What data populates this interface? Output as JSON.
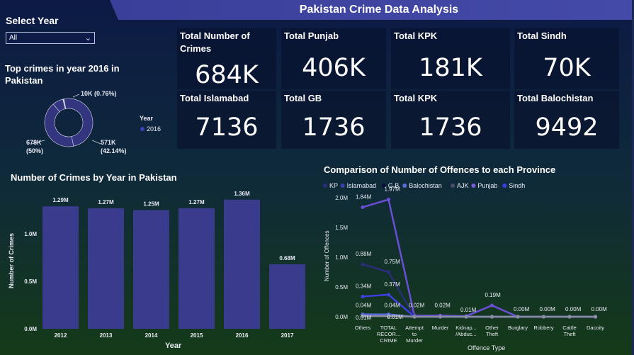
{
  "header": {
    "title": "Pakistan Crime Data Analysis"
  },
  "filter": {
    "label": "Select Year",
    "selected": "All"
  },
  "kpis": [
    {
      "label": "Total Number of Crimes",
      "value": "684K"
    },
    {
      "label": "Total Punjab",
      "value": "406K"
    },
    {
      "label": "Total KPK",
      "value": "181K"
    },
    {
      "label": "Total Sindh",
      "value": "70K"
    },
    {
      "label": "Total Islamabad",
      "value": "7136"
    },
    {
      "label": "Total GB",
      "value": "1736"
    },
    {
      "label": "Total KPK",
      "value": "1736"
    },
    {
      "label": "Total Balochistan",
      "value": "9492"
    }
  ],
  "colors": {
    "bar": "#3a3b8c",
    "donut": "#33357f",
    "punjab": "#6a4fd6",
    "dark_series": "#2a2e7a",
    "sindh": "#3f3fe0"
  },
  "donut": {
    "title": "Top crimes in year 2016 in Pakistan",
    "legend_title": "Year",
    "legend_item": "2016",
    "labels": [
      {
        "text": "10K (0.76%)"
      },
      {
        "text": "678K"
      },
      {
        "text": "(50%)"
      },
      {
        "text": "571K"
      },
      {
        "text": "(42.14%)"
      }
    ],
    "chart_data": {
      "type": "pie",
      "segments": [
        {
          "label": "10K (0.76%)",
          "value": 10,
          "percent": 0.76
        },
        {
          "label": "678K (50%)",
          "value": 678,
          "percent": 50
        },
        {
          "label": "571K (42.14%)",
          "value": 571,
          "percent": 42.14
        }
      ]
    }
  },
  "bar_chart": {
    "title": "Number of Crimes by Year in Pakistan",
    "xlabel": "Year",
    "ylabel": "Number of Crimes",
    "yticks": [
      "0.0M",
      "0.5M",
      "1.0M"
    ],
    "chart_data": {
      "type": "bar",
      "categories": [
        "2012",
        "2013",
        "2014",
        "2015",
        "2016",
        "2017"
      ],
      "values": [
        1.29,
        1.27,
        1.25,
        1.27,
        1.36,
        0.68
      ],
      "data_labels": [
        "1.29M",
        "1.27M",
        "1.25M",
        "1.27M",
        "1.36M",
        "0.68M"
      ],
      "ylim": [
        0,
        1.36
      ]
    }
  },
  "line_chart": {
    "title": "Comparison of Number of Offences to each Province",
    "xlabel": "Offence Type",
    "ylabel": "Number of Offences",
    "yticks": [
      "0.0M",
      "0.5M",
      "1.0M",
      "1.5M",
      "2.0M"
    ],
    "categories": [
      "Others",
      "TOTAL RECOR... CRIME",
      "Attempt to Murder",
      "Murder",
      "Kidnap... /Abduc...",
      "Other Theft",
      "Burglary",
      "Robbery",
      "Cattle Theft",
      "Dacoity"
    ],
    "category_lines": [
      [
        "Others"
      ],
      [
        "TOTAL",
        "RECOR...",
        "CRIME"
      ],
      [
        "Attempt",
        "to",
        "Murder"
      ],
      [
        "Murder"
      ],
      [
        "Kidnap...",
        "/Abduc..."
      ],
      [
        "Other",
        "Theft"
      ],
      [
        "Burglary"
      ],
      [
        "Robbery"
      ],
      [
        "Cattle",
        "Theft"
      ],
      [
        "Dacoity"
      ]
    ],
    "legend": [
      "KP",
      "Islamabad",
      "G.B",
      "Balochistan",
      "AJK",
      "Punjab",
      "Sindh"
    ],
    "legend_colors": [
      "#2b2f7e",
      "#3a3fb0",
      "#0b0e3a",
      "#5a6ad8",
      "#4a4a6a",
      "#7a5ad6",
      "#3d3de8"
    ],
    "point_labels": [
      {
        "text": "1.84M",
        "cat": 0,
        "val": 1.84
      },
      {
        "text": "1.97M",
        "cat": 1,
        "val": 1.97
      },
      {
        "text": "0.88M",
        "cat": 0,
        "val": 0.88
      },
      {
        "text": "0.75M",
        "cat": 1,
        "val": 0.75
      },
      {
        "text": "0.34M",
        "cat": 0,
        "val": 0.34
      },
      {
        "text": "0.37M",
        "cat": 1,
        "val": 0.37
      },
      {
        "text": "0.04M",
        "cat": 0,
        "val": 0.04
      },
      {
        "text": "0.04M",
        "cat": 1,
        "val": 0.04
      },
      {
        "text": "0.01M",
        "cat": 0,
        "val": 0.01
      },
      {
        "text": "0.01M",
        "cat": 1,
        "val": 0.01
      },
      {
        "text": "0.02M",
        "cat": 2,
        "val": 0.02
      },
      {
        "text": "0.02M",
        "cat": 3,
        "val": 0.02
      },
      {
        "text": "0.01M",
        "cat": 4,
        "val": 0.01
      },
      {
        "text": "0.19M",
        "cat": 5,
        "val": 0.19
      },
      {
        "text": "0.00M",
        "cat": 6,
        "val": 0.0
      },
      {
        "text": "0.00M",
        "cat": 7,
        "val": 0.0
      },
      {
        "text": "0.00M",
        "cat": 8,
        "val": 0.0
      },
      {
        "text": "0.00M",
        "cat": 9,
        "val": 0.0
      },
      {
        "text": "0.00M",
        "cat": 2,
        "val": 0.0
      },
      {
        "text": "0.00M",
        "cat": 3,
        "val": 0.0
      },
      {
        "text": "0.00M",
        "cat": 4,
        "val": 0.0
      },
      {
        "text": "0.00M",
        "cat": 5,
        "val": 0.0
      },
      {
        "text": "0.00M",
        "cat": 6,
        "val": 0.0
      },
      {
        "text": "0.00M",
        "cat": 7,
        "val": 0.0
      },
      {
        "text": "0.00M",
        "cat": 8,
        "val": 0.0
      },
      {
        "text": "0.00M",
        "cat": 9,
        "val": 0.0
      }
    ],
    "chart_data": {
      "type": "line",
      "categories": [
        "Others",
        "TOTAL RECOR... CRIME",
        "Attempt to Murder",
        "Murder",
        "Kidnap... /Abduc...",
        "Other Theft",
        "Burglary",
        "Robbery",
        "Cattle Theft",
        "Dacoity"
      ],
      "ylim": [
        0,
        2.0
      ],
      "series": [
        {
          "name": "Punjab",
          "values": [
            1.84,
            1.97,
            0.02,
            0.02,
            0.01,
            0.19,
            0.0,
            0.0,
            0.0,
            0.0
          ]
        },
        {
          "name": "KP",
          "values": [
            0.88,
            0.75,
            0.0,
            0.0,
            0.0,
            0.0,
            0.0,
            0.0,
            0.0,
            0.0
          ]
        },
        {
          "name": "Sindh",
          "values": [
            0.34,
            0.37,
            0.0,
            0.0,
            0.0,
            0.0,
            0.0,
            0.0,
            0.0,
            0.0
          ]
        },
        {
          "name": "Balochistan",
          "values": [
            0.04,
            0.04,
            0.0,
            0.0,
            0.0,
            0.0,
            0.0,
            0.0,
            0.0,
            0.0
          ]
        },
        {
          "name": "Islamabad",
          "values": [
            0.01,
            0.01,
            0.0,
            0.0,
            0.0,
            0.0,
            0.0,
            0.0,
            0.0,
            0.0
          ]
        }
      ]
    }
  }
}
